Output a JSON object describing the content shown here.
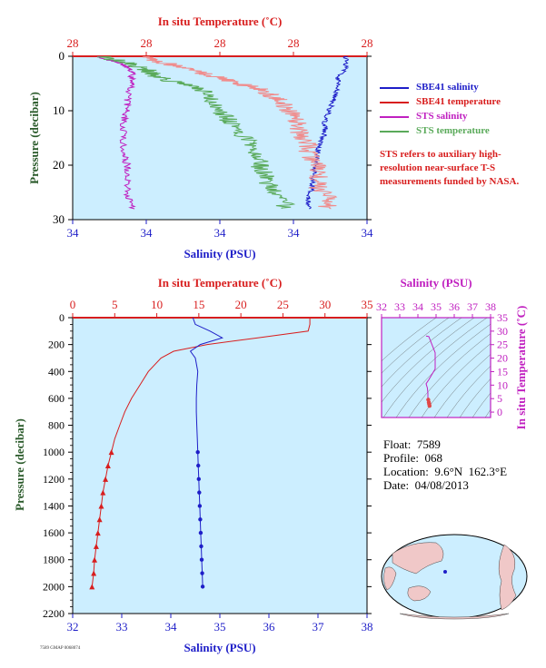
{
  "top_panel": {
    "top_axis_label": "In situ Temperature (˚C)",
    "bottom_axis_label": "Salinity (PSU)",
    "y_axis_label": "Pressure (decibar)",
    "top_ticks": [
      "28",
      "28",
      "28",
      "28",
      "28"
    ],
    "bottom_ticks": [
      "34",
      "34",
      "34",
      "34",
      "34"
    ],
    "y_ticks": [
      "0",
      "10",
      "20",
      "30"
    ]
  },
  "legend": {
    "items": [
      {
        "label": "SBE41 salinity",
        "color": "#1e1ec8"
      },
      {
        "label": "SBE41 temperature",
        "color": "#d81e1e"
      },
      {
        "label": "STS salinity",
        "color": "#c020c0"
      },
      {
        "label": "STS temperature",
        "color": "#5aaa5a"
      }
    ],
    "note": "STS refers to auxiliary high-resolution near-surface T-S measurements funded by NASA."
  },
  "main_panel": {
    "top_axis_label": "In situ Temperature (˚C)",
    "bottom_axis_label": "Salinity (PSU)",
    "y_axis_label": "Pressure (decibar)",
    "top_ticks": [
      "0",
      "5",
      "10",
      "15",
      "20",
      "25",
      "30",
      "35"
    ],
    "bottom_ticks": [
      "32",
      "33",
      "34",
      "35",
      "36",
      "37",
      "38"
    ],
    "y_ticks": [
      "0",
      "200",
      "400",
      "600",
      "800",
      "1000",
      "1200",
      "1400",
      "1600",
      "1800",
      "2000",
      "2200"
    ]
  },
  "ts_panel": {
    "top_axis_label": "Salinity (PSU)",
    "right_axis_label": "In situ Temperature (˚C)",
    "x_ticks": [
      "32",
      "33",
      "34",
      "35",
      "36",
      "37",
      "38"
    ],
    "y_ticks": [
      "0",
      "5",
      "10",
      "15",
      "20",
      "25",
      "30",
      "35"
    ]
  },
  "info": {
    "float": "Float:  7589",
    "profile": "Profile:  068",
    "location": "Location:  9.6°N  162.3°E",
    "date": "Date:  04/08/2013"
  },
  "footer_id": "7589 GMAP 0068074",
  "colors": {
    "plot_bg": "#cceeff",
    "temperature": "#d81e1e",
    "salinity": "#1e1ec8",
    "sts_salinity": "#c020c0",
    "sts_temperature": "#5aaa5a"
  },
  "chart_data": [
    {
      "type": "line",
      "xlabel": "Salinity (PSU)",
      "x2label": "In situ Temperature (˚C)",
      "ylabel": "Pressure (decibar)",
      "ylim": [
        30,
        0
      ],
      "series": [
        {
          "name": "SBE41 salinity",
          "pressure": [
            0,
            2,
            4,
            6,
            8,
            10,
            12,
            14,
            16,
            18,
            20,
            22,
            24,
            26,
            28
          ],
          "values": [
            34.6,
            34.6,
            34.58,
            34.58,
            34.57,
            34.56,
            34.55,
            34.55,
            34.54,
            34.53,
            34.53,
            34.52,
            34.52,
            34.51,
            34.51
          ]
        },
        {
          "name": "SBE41 temperature",
          "pressure": [
            0,
            1,
            2,
            3,
            4,
            5,
            6,
            7,
            8,
            10,
            12,
            14,
            16,
            18,
            20,
            22,
            24,
            26,
            28
          ],
          "values": [
            28.02,
            28.04,
            28.06,
            28.08,
            28.1,
            28.12,
            28.14,
            28.15,
            28.16,
            28.17,
            28.18,
            28.18,
            28.19,
            28.19,
            28.2,
            28.2,
            28.2,
            28.21,
            28.21
          ]
        },
        {
          "name": "STS salinity",
          "pressure": [
            0,
            1,
            2,
            3,
            5,
            8,
            10,
            12,
            15,
            18,
            20,
            22,
            25,
            28
          ],
          "values": [
            34.01,
            34.05,
            34.08,
            34.09,
            34.09,
            34.08,
            34.08,
            34.07,
            34.07,
            34.07,
            34.08,
            34.08,
            34.08,
            34.09
          ]
        },
        {
          "name": "STS temperature",
          "pressure": [
            0,
            1,
            2,
            3,
            4,
            5,
            6,
            8,
            10,
            12,
            14,
            16,
            18,
            20,
            22,
            24,
            26,
            28
          ],
          "values": [
            27.98,
            28.0,
            28.02,
            28.03,
            28.04,
            28.06,
            28.08,
            28.09,
            28.1,
            28.11,
            28.12,
            28.13,
            28.14,
            28.14,
            28.15,
            28.15,
            28.16,
            28.17
          ]
        }
      ]
    },
    {
      "type": "line",
      "xlabel": "Salinity (PSU)",
      "x2label": "In situ Temperature (˚C)",
      "ylabel": "Pressure (decibar)",
      "xlim": [
        32,
        38
      ],
      "x2lim": [
        0,
        35
      ],
      "ylim": [
        2200,
        0
      ],
      "series": [
        {
          "name": "Temperature",
          "pressure": [
            0,
            50,
            100,
            150,
            200,
            250,
            300,
            400,
            500,
            600,
            700,
            800,
            900,
            1000,
            1100,
            1200,
            1300,
            1400,
            1500,
            1600,
            1700,
            1800,
            1900,
            2000
          ],
          "values": [
            28.2,
            28.2,
            28.0,
            22.0,
            16.0,
            12.0,
            10.5,
            9.0,
            8.0,
            7.0,
            6.2,
            5.6,
            5.0,
            4.6,
            4.2,
            3.9,
            3.6,
            3.4,
            3.2,
            3.0,
            2.8,
            2.6,
            2.5,
            2.3
          ]
        },
        {
          "name": "Salinity",
          "pressure": [
            0,
            50,
            100,
            150,
            200,
            250,
            300,
            400,
            500,
            600,
            700,
            800,
            900,
            1000,
            1100,
            1200,
            1300,
            1400,
            1500,
            1600,
            1700,
            1800,
            1900,
            2000
          ],
          "values": [
            34.45,
            34.5,
            34.8,
            35.05,
            34.6,
            34.4,
            34.5,
            34.55,
            34.53,
            34.52,
            34.52,
            34.53,
            34.54,
            34.55,
            34.56,
            34.57,
            34.58,
            34.59,
            34.6,
            34.61,
            34.62,
            34.63,
            34.64,
            34.65
          ]
        }
      ]
    },
    {
      "type": "scatter",
      "xlabel": "Salinity (PSU)",
      "ylabel": "In situ Temperature (˚C)",
      "xlim": [
        32,
        38
      ],
      "ylim": [
        -2,
        35
      ],
      "series": [
        {
          "name": "T-S",
          "x": [
            34.45,
            34.6,
            34.95,
            34.95,
            34.6,
            34.45,
            34.52,
            34.55,
            34.55,
            34.57,
            34.6,
            34.62,
            34.64
          ],
          "y": [
            28.2,
            28.0,
            22.0,
            16.0,
            12.0,
            10.5,
            9.0,
            7.0,
            5.6,
            4.6,
            3.6,
            3.0,
            2.3
          ]
        }
      ]
    }
  ]
}
